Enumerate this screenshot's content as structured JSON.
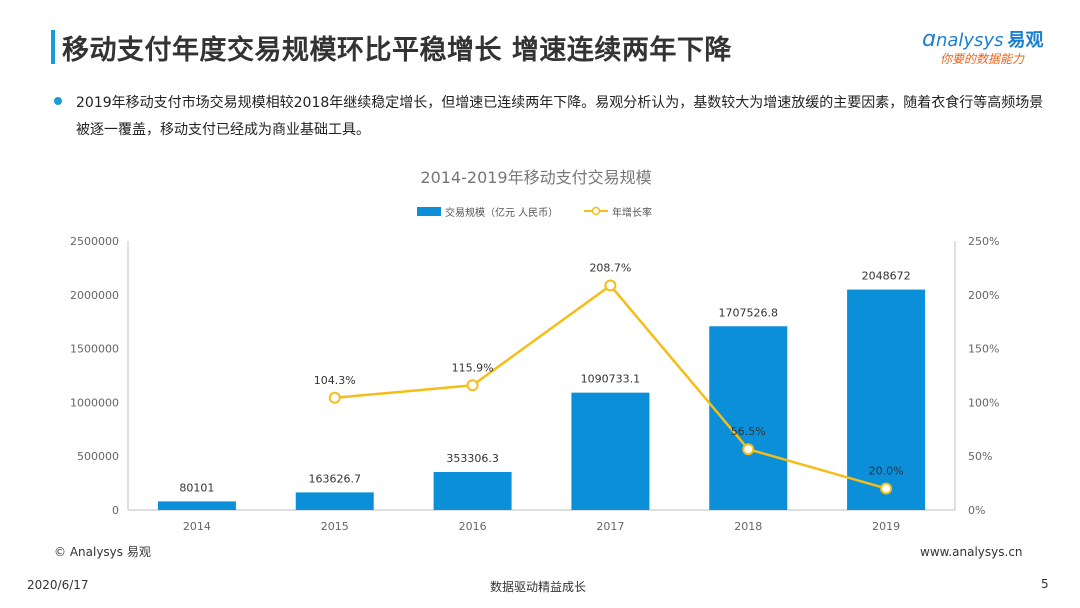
{
  "header": {
    "title": "移动支付年度交易规模环比平稳增长 增速连续两年下降",
    "logo_text": "nalysys",
    "logo_cn": "易观",
    "logo_sub": "你要的数据能力"
  },
  "summary": {
    "text": "2019年移动支付市场交易规模相较2018年继续稳定增长，但增速已连续两年下降。易观分析认为，基数较大为增速放缓的主要因素，随着衣食行等高频场景被逐一覆盖，移动支付已经成为商业基础工具。"
  },
  "chart_data": {
    "type": "bar",
    "title": "2014-2019年移动支付交易规模",
    "categories": [
      "2014",
      "2015",
      "2016",
      "2017",
      "2018",
      "2019"
    ],
    "series": [
      {
        "name": "交易规模（亿元 人民币）",
        "type": "bar",
        "axis": "left",
        "values": [
          80101,
          163626.7,
          353306.3,
          1090733.1,
          1707526.8,
          2048672
        ],
        "labels": [
          "80101",
          "163626.7",
          "353306.3",
          "1090733.1",
          "1707526.8",
          "2048672"
        ]
      },
      {
        "name": "年增长率",
        "type": "line",
        "axis": "right",
        "values": [
          null,
          104.3,
          115.9,
          208.7,
          56.5,
          20.0
        ],
        "labels": [
          "",
          "104.3%",
          "115.9%",
          "208.7%",
          "56.5%",
          "20.0%"
        ]
      }
    ],
    "ylim_left": [
      0,
      2500000
    ],
    "ylim_right": [
      0,
      250
    ],
    "left_ticks": [
      "0",
      "500000",
      "1000000",
      "1500000",
      "2000000",
      "2500000"
    ],
    "right_ticks": [
      "0%",
      "50%",
      "100%",
      "150%",
      "200%",
      "250%"
    ],
    "legend_position": "top-center",
    "grid": false,
    "colors": {
      "bar": "#0b8fd8",
      "line": "#f6bd16",
      "axis": "#bfbfbf",
      "tick_text": "#666666"
    }
  },
  "footer": {
    "source": "© Analysys 易观",
    "url": "www.analysys.cn",
    "date": "2020/6/17",
    "slogan": "数据驱动精益成长",
    "page": "5"
  }
}
